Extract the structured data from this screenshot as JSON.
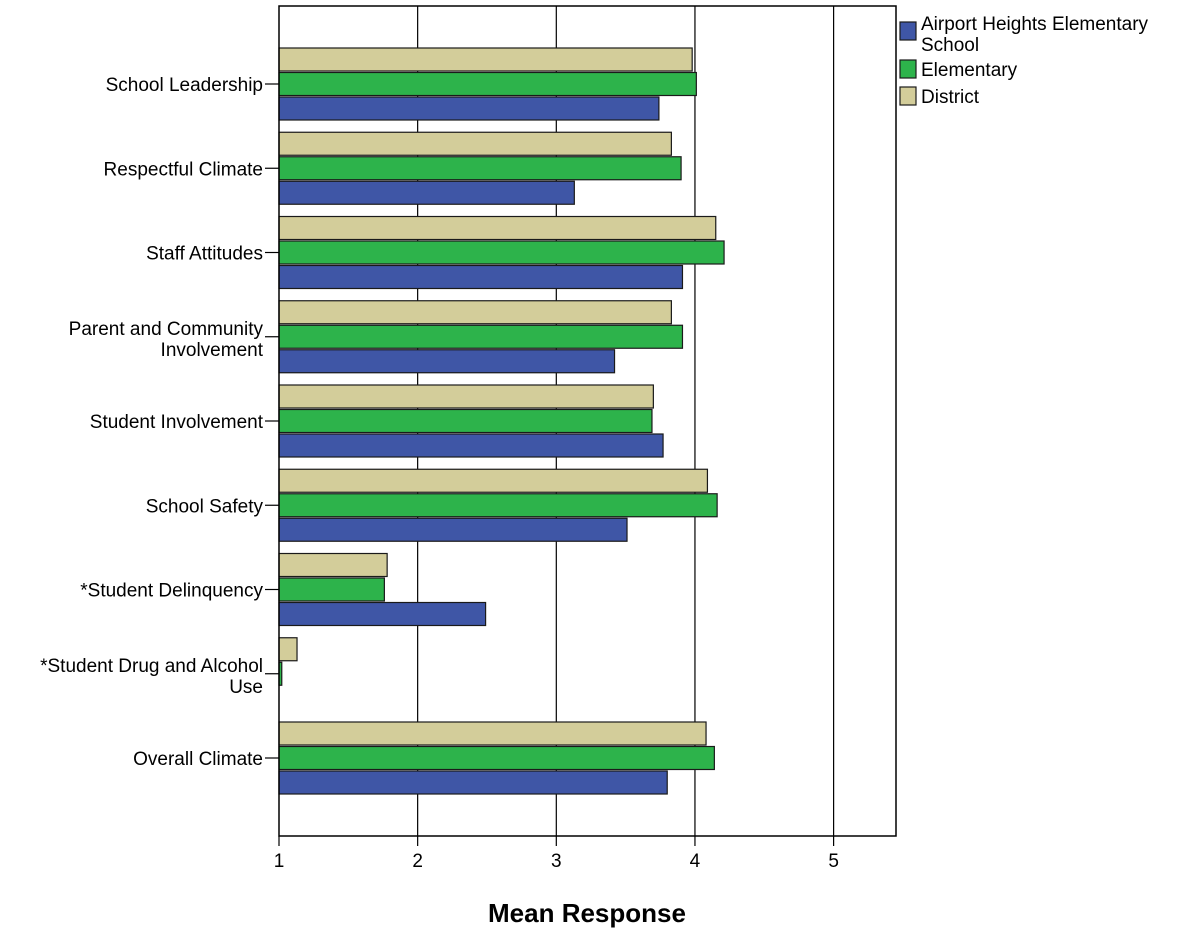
{
  "chart_data": {
    "type": "bar",
    "orientation": "horizontal",
    "xlabel": "Mean Response",
    "ylabel": "",
    "xlim": [
      1,
      5.45
    ],
    "x_ticks": [
      1,
      2,
      3,
      4,
      5
    ],
    "grid": true,
    "legend_position": "top-right",
    "categories": [
      "School Leadership",
      "Respectful Climate",
      "Staff Attitudes",
      "Parent and Community Involvement",
      "Student Involvement",
      "School Safety",
      "*Student Delinquency",
      "*Student Drug and Alcohol Use",
      "Overall Climate"
    ],
    "category_label_lines": [
      [
        "School Leadership"
      ],
      [
        "Respectful Climate"
      ],
      [
        "Staff Attitudes"
      ],
      [
        "Parent and Community",
        "Involvement"
      ],
      [
        "Student Involvement"
      ],
      [
        "School Safety"
      ],
      [
        "*Student Delinquency"
      ],
      [
        "*Student Drug and Alcohol",
        "Use"
      ],
      [
        "Overall Climate"
      ]
    ],
    "series": [
      {
        "name": "District",
        "color": "#d3cd9a",
        "values": [
          3.98,
          3.83,
          4.15,
          3.83,
          3.7,
          4.09,
          1.78,
          1.13,
          4.08
        ]
      },
      {
        "name": "Elementary",
        "color": "#2db34b",
        "values": [
          4.01,
          3.9,
          4.21,
          3.91,
          3.69,
          4.16,
          1.76,
          1.02,
          4.14
        ]
      },
      {
        "name": "Airport Heights Elementary School",
        "color": "#3f56a6",
        "values": [
          3.74,
          3.13,
          3.91,
          3.42,
          3.77,
          3.51,
          2.49,
          1.0,
          3.8
        ]
      }
    ],
    "legend_order": [
      2,
      1,
      0
    ],
    "legend_label_lines": [
      [
        "Airport Heights Elementary",
        "School"
      ],
      [
        "Elementary"
      ],
      [
        "District"
      ]
    ]
  }
}
